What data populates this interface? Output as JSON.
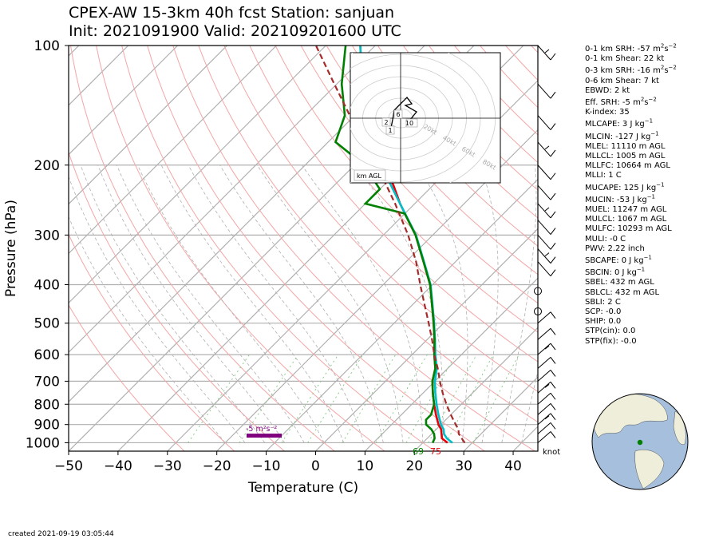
{
  "title": {
    "line1": "CPEX-AW 15-3km  40h fcst  Station: sanjuan",
    "line2": "Init: 2021091900  Valid: 202109201600 UTC"
  },
  "created": "created 2021-09-19 03:05:44",
  "chart_data": {
    "type": "skewt",
    "xlabel": "Temperature (C)",
    "ylabel": "Pressure (hPa)",
    "xlim": [
      -50,
      45
    ],
    "ylim": [
      1050,
      100
    ],
    "y_scale": "log",
    "xticks": [
      -50,
      -40,
      -30,
      -20,
      -10,
      0,
      10,
      20,
      30,
      40
    ],
    "yticks": [
      100,
      200,
      300,
      400,
      500,
      600,
      700,
      800,
      900,
      1000
    ],
    "grid": true,
    "series": [
      {
        "role": "temperature",
        "color": "#e8000b",
        "points": [
          [
            1000,
            25
          ],
          [
            975,
            23
          ],
          [
            950,
            22
          ],
          [
            925,
            21
          ],
          [
            900,
            19.5
          ],
          [
            850,
            17
          ],
          [
            800,
            14.5
          ],
          [
            750,
            12
          ],
          [
            700,
            9.5
          ],
          [
            650,
            7.5
          ],
          [
            600,
            4.5
          ],
          [
            550,
            1.5
          ],
          [
            500,
            -2
          ],
          [
            450,
            -6
          ],
          [
            400,
            -10.5
          ],
          [
            350,
            -16.5
          ],
          [
            300,
            -23.5
          ],
          [
            250,
            -33
          ],
          [
            225,
            -38
          ],
          [
            200,
            -44
          ],
          [
            175,
            -52
          ],
          [
            150,
            -58.5
          ],
          [
            125,
            -65
          ],
          [
            100,
            -73
          ]
        ]
      },
      {
        "role": "virtual temperature",
        "color": "#00bfc8",
        "points": [
          [
            1000,
            26
          ],
          [
            975,
            24
          ],
          [
            950,
            22.5
          ],
          [
            925,
            21.5
          ],
          [
            900,
            20
          ],
          [
            850,
            17.5
          ],
          [
            800,
            15
          ],
          [
            750,
            12.5
          ],
          [
            700,
            10
          ],
          [
            650,
            7.8
          ],
          [
            600,
            4.7
          ],
          [
            550,
            1.6
          ],
          [
            500,
            -1.9
          ],
          [
            450,
            -5.9
          ],
          [
            400,
            -10.4
          ],
          [
            350,
            -16.4
          ],
          [
            300,
            -23.4
          ],
          [
            250,
            -33
          ],
          [
            225,
            -38.5
          ],
          [
            200,
            -44.5
          ],
          [
            175,
            -52
          ],
          [
            150,
            -58.5
          ],
          [
            125,
            -65
          ],
          [
            100,
            -73
          ]
        ]
      },
      {
        "role": "dewpoint",
        "color": "#008000",
        "points": [
          [
            1000,
            22
          ],
          [
            975,
            21.5
          ],
          [
            950,
            20.5
          ],
          [
            925,
            19
          ],
          [
            900,
            17
          ],
          [
            875,
            16
          ],
          [
            850,
            16
          ],
          [
            800,
            14.5
          ],
          [
            750,
            12
          ],
          [
            700,
            9.5
          ],
          [
            650,
            7.5
          ],
          [
            600,
            4.5
          ],
          [
            550,
            1.5
          ],
          [
            500,
            -2
          ],
          [
            450,
            -6
          ],
          [
            400,
            -10.5
          ],
          [
            350,
            -16.5
          ],
          [
            300,
            -23.5
          ],
          [
            265,
            -30
          ],
          [
            250,
            -40
          ],
          [
            230,
            -40
          ],
          [
            200,
            -48
          ],
          [
            175,
            -58.5
          ],
          [
            150,
            -62
          ],
          [
            125,
            -69
          ],
          [
            100,
            -76
          ]
        ]
      },
      {
        "role": "parcel path",
        "color": "#a52a2a",
        "dashed": true,
        "points": [
          [
            1000,
            28.5
          ],
          [
            975,
            27
          ],
          [
            950,
            25.5
          ],
          [
            925,
            24.5
          ],
          [
            900,
            23
          ],
          [
            850,
            20
          ],
          [
            800,
            17
          ],
          [
            750,
            14
          ],
          [
            700,
            11
          ],
          [
            650,
            8
          ],
          [
            600,
            4.5
          ],
          [
            550,
            1
          ],
          [
            500,
            -3
          ],
          [
            450,
            -7.5
          ],
          [
            400,
            -12.5
          ],
          [
            350,
            -18
          ],
          [
            300,
            -25
          ],
          [
            250,
            -34
          ],
          [
            200,
            -45.5
          ],
          [
            150,
            -61
          ],
          [
            125,
            -70.5
          ],
          [
            100,
            -82
          ]
        ]
      }
    ],
    "surface_labels": [
      {
        "text": "69",
        "color": "#008000"
      },
      {
        "text": "75",
        "color": "#e8000b"
      }
    ],
    "cape_label": {
      "text": "-5 m²s⁻²",
      "color": "#800080"
    },
    "wind_unit": "knot",
    "hodograph": {
      "label": "km AGL",
      "ring_labels": [
        "20kt",
        "40kt",
        "60kt",
        "80kt"
      ],
      "height_labels": [
        "2",
        "1",
        "6",
        "10"
      ]
    },
    "globe": {
      "marker_color": "#008000"
    }
  },
  "indices": [
    {
      "label": "0-1 km SRH: -57 m",
      "sup1": "2",
      "mid": "s",
      "sup2": "−2",
      "gap": false
    },
    {
      "label": "0-1 km Shear: 22 kt",
      "gap": false
    },
    {
      "label": "0-3 km SRH: -16 m",
      "sup1": "2",
      "mid": "s",
      "sup2": "−2",
      "gap": true
    },
    {
      "label": "0-6 km Shear: 7 kt",
      "gap": false
    },
    {
      "label": "EBWD: 2 kt",
      "gap": false
    },
    {
      "label": "Eff. SRH: -5 m",
      "sup1": "2",
      "mid": "s",
      "sup2": "−2",
      "gap": true
    },
    {
      "label": "K-index: 35",
      "gap": false
    },
    {
      "label": "MLCAPE: 3 J kg",
      "sup2": "−1",
      "gap": true
    },
    {
      "label": "MLCIN: -127 J kg",
      "sup2": "−1",
      "gap": true
    },
    {
      "label": "MLEL: 11110 m AGL",
      "gap": false
    },
    {
      "label": "MLLCL: 1005 m AGL",
      "gap": false
    },
    {
      "label": "MLLFC: 10664 m AGL",
      "gap": false
    },
    {
      "label": "MLLI: 1 C",
      "gap": false
    },
    {
      "label": "MUCAPE: 125 J kg",
      "sup2": "−1",
      "gap": true
    },
    {
      "label": "MUCIN: -53 J kg",
      "sup2": "−1",
      "gap": true
    },
    {
      "label": "MUEL: 11247 m AGL",
      "gap": false
    },
    {
      "label": "MULCL: 1067 m AGL",
      "gap": false
    },
    {
      "label": "MULFC: 10293 m AGL",
      "gap": false
    },
    {
      "label": "MULI: -0 C",
      "gap": false
    },
    {
      "label": "PWV: 2.22 inch",
      "gap": false
    },
    {
      "label": "SBCAPE: 0 J kg",
      "sup2": "−1",
      "gap": true
    },
    {
      "label": "SBCIN: 0 J kg",
      "sup2": "−1",
      "gap": true
    },
    {
      "label": "SBEL: 432 m AGL",
      "gap": false
    },
    {
      "label": "SBLCL: 432 m AGL",
      "gap": false
    },
    {
      "label": "SBLI: 2 C",
      "gap": false
    },
    {
      "label": "SCP: -0.0",
      "gap": false
    },
    {
      "label": "SHIP: 0.0",
      "gap": false
    },
    {
      "label": "STP(cin): 0.0",
      "gap": false
    },
    {
      "label": "STP(fix): -0.0",
      "gap": false
    }
  ]
}
